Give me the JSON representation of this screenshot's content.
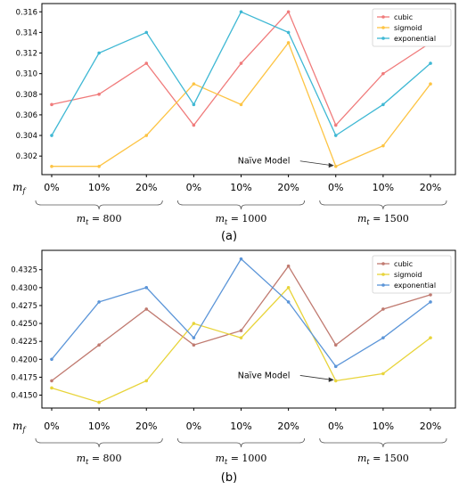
{
  "chart_data": [
    {
      "type": "line",
      "categories": [
        "0%",
        "10%",
        "20%",
        "0%",
        "10%",
        "20%",
        "0%",
        "10%",
        "20%"
      ],
      "xlabel": "m_f",
      "groups": [
        {
          "label": "m_t = 800",
          "sub": "t",
          "value": "800"
        },
        {
          "label": "m_t = 1000",
          "sub": "t",
          "value": "1000"
        },
        {
          "label": "m_t = 1500",
          "sub": "t",
          "value": "1500"
        }
      ],
      "yticks": [
        "0.302",
        "0.304",
        "0.306",
        "0.308",
        "0.310",
        "0.312",
        "0.314",
        "0.316"
      ],
      "ylim": [
        0.3002,
        0.3168
      ],
      "series": [
        {
          "name": "cubic",
          "color": "#f07b7b",
          "values": [
            0.307,
            0.308,
            0.311,
            0.305,
            0.311,
            0.316,
            0.305,
            0.31,
            0.313
          ]
        },
        {
          "name": "sigmoid",
          "color": "#fdc444",
          "values": [
            0.301,
            0.301,
            0.304,
            0.309,
            0.307,
            0.313,
            0.301,
            0.303,
            0.309
          ]
        },
        {
          "name": "exponential",
          "color": "#3fb8d4",
          "values": [
            0.304,
            0.312,
            0.314,
            0.307,
            0.316,
            0.314,
            0.304,
            0.307,
            0.311
          ]
        }
      ],
      "annotation": {
        "text": "Naïve Model",
        "points_to_index": 6,
        "points_to_value": 0.301
      },
      "legend": "top-right",
      "caption": "(a)"
    },
    {
      "type": "line",
      "categories": [
        "0%",
        "10%",
        "20%",
        "0%",
        "10%",
        "20%",
        "0%",
        "10%",
        "20%"
      ],
      "xlabel": "m_f",
      "groups": [
        {
          "label": "m_t = 800",
          "sub": "t",
          "value": "800"
        },
        {
          "label": "m_t = 1000",
          "sub": "t",
          "value": "1000"
        },
        {
          "label": "m_t = 1500",
          "sub": "t",
          "value": "1500"
        }
      ],
      "yticks": [
        "0.4150",
        "0.4175",
        "0.4200",
        "0.4225",
        "0.4250",
        "0.4275",
        "0.4300",
        "0.4325"
      ],
      "ylim": [
        0.4132,
        0.4352
      ],
      "series": [
        {
          "name": "cubic",
          "color": "#c07a70",
          "values": [
            0.417,
            0.422,
            0.427,
            0.422,
            0.424,
            0.433,
            0.422,
            0.427,
            0.429
          ]
        },
        {
          "name": "sigmoid",
          "color": "#e8d43a",
          "values": [
            0.416,
            0.414,
            0.417,
            0.425,
            0.423,
            0.43,
            0.417,
            0.418,
            0.423
          ]
        },
        {
          "name": "exponential",
          "color": "#5b95d8",
          "values": [
            0.42,
            0.428,
            0.43,
            0.423,
            0.434,
            0.428,
            0.419,
            0.423,
            0.428
          ]
        }
      ],
      "annotation": {
        "text": "Naïve Model",
        "points_to_index": 6,
        "points_to_value": 0.417
      },
      "legend": "top-right",
      "caption": "(b)"
    }
  ]
}
